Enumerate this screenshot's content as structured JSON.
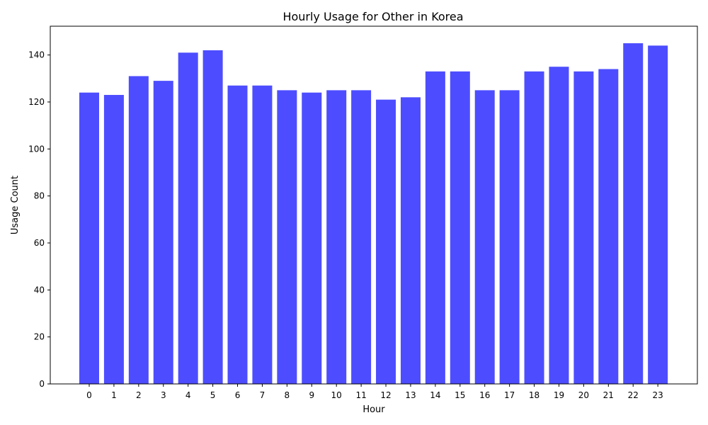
{
  "chart_data": {
    "type": "bar",
    "title": "Hourly Usage for Other in Korea",
    "xlabel": "Hour",
    "ylabel": "Usage Count",
    "categories": [
      "0",
      "1",
      "2",
      "3",
      "4",
      "5",
      "6",
      "7",
      "8",
      "9",
      "10",
      "11",
      "12",
      "13",
      "14",
      "15",
      "16",
      "17",
      "18",
      "19",
      "20",
      "21",
      "22",
      "23"
    ],
    "values": [
      124,
      123,
      131,
      129,
      141,
      142,
      127,
      127,
      125,
      124,
      125,
      125,
      121,
      122,
      133,
      133,
      125,
      125,
      133,
      135,
      133,
      134,
      145,
      144
    ],
    "ylim": [
      0,
      152.25
    ],
    "yticks": [
      0,
      20,
      40,
      60,
      80,
      100,
      120,
      140
    ],
    "bar_color": "#4d4dff",
    "grid": false,
    "legend": "none"
  }
}
